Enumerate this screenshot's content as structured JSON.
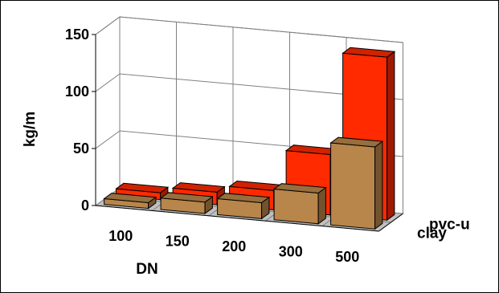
{
  "chart_data": {
    "type": "bar",
    "subtype": "3d-clustered-depth",
    "title": "",
    "xlabel": "DN",
    "ylabel": "kg/m",
    "categories": [
      "100",
      "150",
      "200",
      "300",
      "500"
    ],
    "ylim": [
      0,
      150
    ],
    "yticks": [
      "0",
      "50",
      "100",
      "150"
    ],
    "grid": true,
    "legend": "none (series labelled on depth axis)",
    "series": [
      {
        "name": "clay",
        "values": [
          5,
          10,
          14,
          27,
          72
        ],
        "color": "#b8864a"
      },
      {
        "name": "pvc-u",
        "values": [
          6,
          11,
          17,
          53,
          143
        ],
        "color": "#ff2a00"
      }
    ]
  }
}
